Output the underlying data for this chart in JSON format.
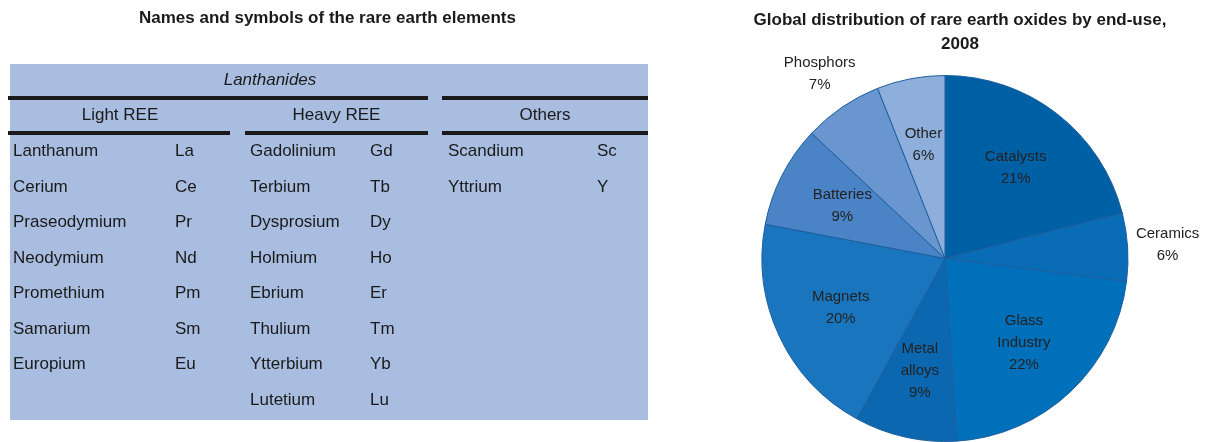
{
  "chart_data": [
    {
      "type": "other",
      "title": "Names and symbols of the rare earth elements",
      "annotations": [
        "Lanthanides",
        "Light REE",
        "Heavy REE",
        "Others",
        "Lanthanum",
        "La",
        "Cerium",
        "Ce",
        "Praseodymium",
        "Pr",
        "Neodymium",
        "Nd",
        "Promethium",
        "Pm",
        "Samarium",
        "Sm",
        "Europium",
        "Eu",
        "Gadolinium",
        "Gd",
        "Terbium",
        "Tb",
        "Dysprosium",
        "Dy",
        "Holmium",
        "Ho",
        "Ebrium",
        "Er",
        "Thulium",
        "Tm",
        "Ytterbium",
        "Yb",
        "Lutetium",
        "Lu",
        "Scandium",
        "Sc",
        "Yttrium",
        "Y"
      ]
    },
    {
      "type": "pie",
      "title": "Global distribution of rare earth oxides by end-use, 2008",
      "categories": [
        "Catalysts",
        "Ceramics",
        "Glass Industry",
        "Metal alloys",
        "Magnets",
        "Batteries",
        "Phosphors",
        "Other"
      ],
      "values": [
        21,
        6,
        22,
        9,
        20,
        9,
        7,
        6
      ],
      "value_labels": [
        "21%",
        "6%",
        "22%",
        "9%",
        "20%",
        "9%",
        "7%",
        "6%"
      ],
      "colors": [
        "#0060a6",
        "#0a6cb6",
        "#0070ba",
        "#0b68b0",
        "#1976be",
        "#4a84c6",
        "#6a96cf",
        "#8eaedb"
      ],
      "legend": false
    }
  ]
}
